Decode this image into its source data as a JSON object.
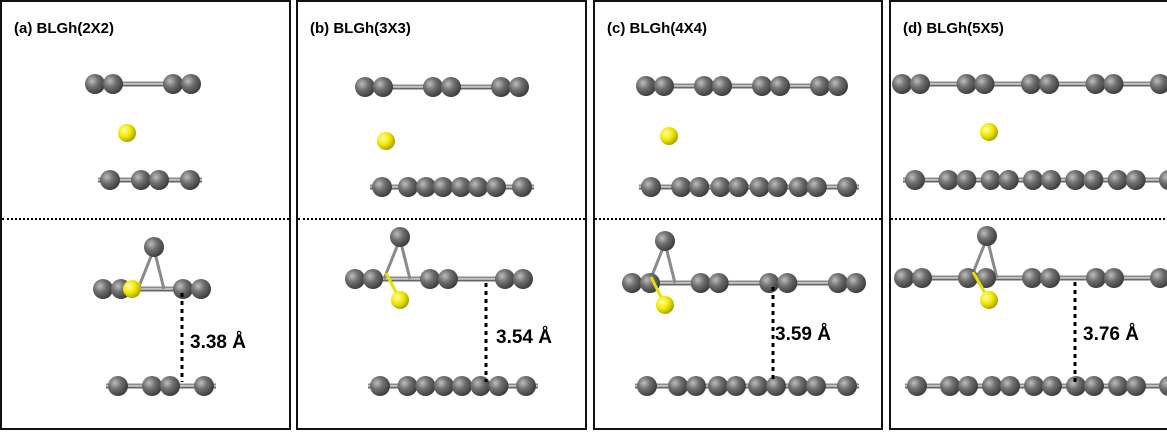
{
  "panels": [
    {
      "title": "(a) BLGh(2X2)",
      "distance": "3.38 Å",
      "ring_pattern": [
        2,
        2
      ],
      "bottom_pattern": [
        1,
        2,
        1
      ]
    },
    {
      "title": "(b) BLGh(3X3)",
      "distance": "3.54 Å",
      "ring_pattern": [
        2,
        2,
        2
      ],
      "bottom_pattern": [
        1,
        2,
        2,
        2,
        1
      ]
    },
    {
      "title": "(c) BLGh(4X4)",
      "distance": "3.59 Å",
      "ring_pattern": [
        2,
        2,
        2,
        2
      ],
      "bottom_pattern": [
        1,
        2,
        2,
        2,
        2,
        1
      ]
    },
    {
      "title": "(d) BLGh(5X5)",
      "distance": "3.76 Å",
      "ring_pattern": [
        2,
        2,
        2,
        2,
        2
      ],
      "bottom_pattern": [
        1,
        2,
        2,
        2,
        2,
        2,
        1
      ]
    }
  ],
  "colors": {
    "carbon": "#6f6f6f",
    "carbon_dark": "#3a3a3a",
    "dopant": "#f2ea00",
    "dopant_dark": "#a8a000",
    "bond": "#8a8a8a"
  }
}
